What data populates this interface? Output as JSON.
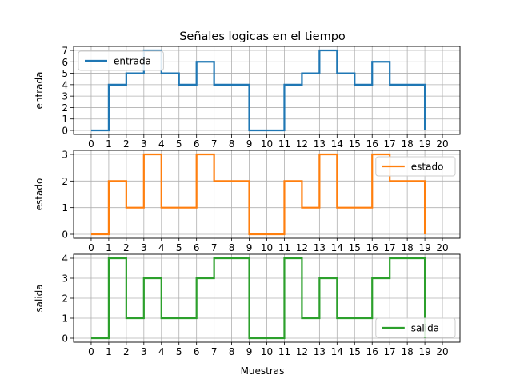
{
  "chart_data": {
    "type": "line",
    "title": "Señales logicas en el tiempo",
    "xlabel": "Muestras",
    "xticks": [
      0,
      1,
      2,
      3,
      4,
      5,
      6,
      7,
      8,
      9,
      10,
      11,
      12,
      13,
      14,
      15,
      16,
      17,
      18,
      19,
      20
    ],
    "grid": true,
    "step": "post",
    "subplots": [
      {
        "ylabel": "entrada",
        "ylim": [
          -0.35,
          7.35
        ],
        "yticks": [
          0,
          1,
          2,
          3,
          4,
          5,
          6,
          7
        ],
        "legend_position": "upper-left",
        "series": [
          {
            "name": "entrada",
            "color": "#1f77b4",
            "x": [
              0,
              1,
              2,
              3,
              4,
              5,
              6,
              7,
              8,
              9,
              10,
              11,
              12,
              13,
              14,
              15,
              16,
              17,
              18,
              19
            ],
            "values": [
              0,
              4,
              5,
              7,
              5,
              4,
              6,
              4,
              4,
              0,
              0,
              4,
              5,
              7,
              5,
              4,
              6,
              4,
              4,
              0
            ]
          }
        ]
      },
      {
        "ylabel": "estado",
        "ylim": [
          -0.15,
          3.15
        ],
        "yticks": [
          0,
          1,
          2,
          3
        ],
        "legend_position": "upper-right",
        "series": [
          {
            "name": "estado",
            "color": "#ff7f0e",
            "x": [
              0,
              1,
              2,
              3,
              4,
              5,
              6,
              7,
              8,
              9,
              10,
              11,
              12,
              13,
              14,
              15,
              16,
              17,
              18,
              19
            ],
            "values": [
              0,
              2,
              1,
              3,
              1,
              1,
              3,
              2,
              2,
              0,
              0,
              2,
              1,
              3,
              1,
              1,
              3,
              2,
              2,
              0
            ]
          }
        ]
      },
      {
        "ylabel": "salida",
        "ylim": [
          -0.2,
          4.2
        ],
        "yticks": [
          0,
          1,
          2,
          3,
          4
        ],
        "legend_position": "lower-right",
        "series": [
          {
            "name": "salida",
            "color": "#2ca02c",
            "x": [
              0,
              1,
              2,
              3,
              4,
              5,
              6,
              7,
              8,
              9,
              10,
              11,
              12,
              13,
              14,
              15,
              16,
              17,
              18,
              19
            ],
            "values": [
              0,
              4,
              1,
              3,
              1,
              1,
              3,
              4,
              4,
              0,
              0,
              4,
              1,
              3,
              1,
              1,
              3,
              4,
              4,
              0
            ]
          }
        ]
      }
    ]
  }
}
